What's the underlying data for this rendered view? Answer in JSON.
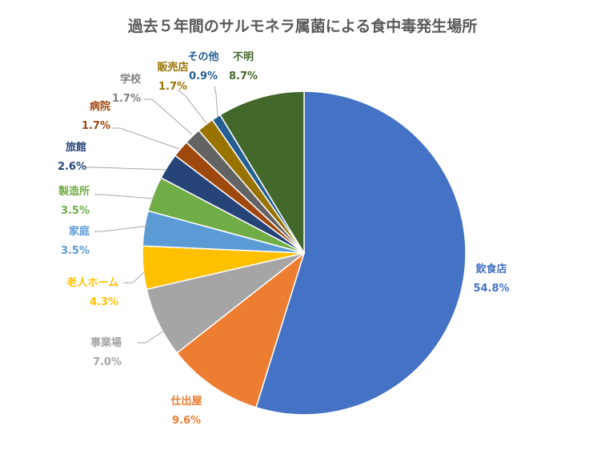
{
  "chart_data": {
    "type": "pie",
    "title": "過去５年間のサルモネラ属菌による食中毒発生場所",
    "slices": [
      {
        "label": "飲食店",
        "value_label": "54.8%",
        "value": 54.8,
        "color": "#4472C4"
      },
      {
        "label": "仕出屋",
        "value_label": "9.6%",
        "value": 9.6,
        "color": "#ED7D31"
      },
      {
        "label": "事業場",
        "value_label": "7.0%",
        "value": 7.0,
        "color": "#A5A5A5"
      },
      {
        "label": "老人ホーム",
        "value_label": "4.3%",
        "value": 4.3,
        "color": "#FFC000"
      },
      {
        "label": "家庭",
        "value_label": "3.5%",
        "value": 3.5,
        "color": "#5B9BD5"
      },
      {
        "label": "製造所",
        "value_label": "3.5%",
        "value": 3.5,
        "color": "#70AD47"
      },
      {
        "label": "旅館",
        "value_label": "2.6%",
        "value": 2.6,
        "color": "#264478"
      },
      {
        "label": "病院",
        "value_label": "1.7%",
        "value": 1.7,
        "color": "#9E480E"
      },
      {
        "label": "学校",
        "value_label": "1.7%",
        "value": 1.7,
        "color": "#636363"
      },
      {
        "label": "販売店",
        "value_label": "1.7%",
        "value": 1.7,
        "color": "#997300"
      },
      {
        "label": "その他",
        "value_label": "0.9%",
        "value": 0.9,
        "color": "#255E91"
      },
      {
        "label": "不明",
        "value_label": "8.7%",
        "value": 8.7,
        "color": "#43682B"
      }
    ],
    "label_colors": {
      "飲食店": "#4472C4",
      "仕出屋": "#ED7D31",
      "事業場": "#A5A5A5",
      "老人ホーム": "#FFC000",
      "家庭": "#5B9BD5",
      "製造所": "#70AD47",
      "旅館": "#264478",
      "病院": "#9E480E",
      "学校": "#7F7F7F",
      "販売店": "#997300",
      "その他": "#255E91",
      "不明": "#43682B"
    }
  }
}
